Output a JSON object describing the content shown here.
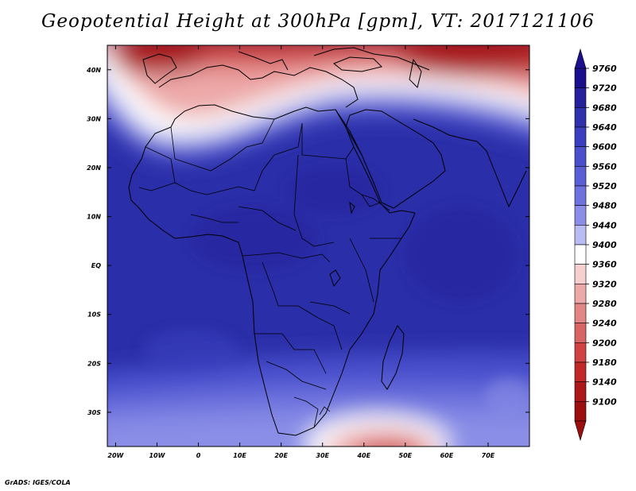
{
  "title": "Geopotential Height at 300hPa [gpm], VT: 2017121106",
  "footer": "GrADS: IGES/COLA",
  "axes": {
    "lat_labels": [
      "40N",
      "30N",
      "20N",
      "10N",
      "EQ",
      "10S",
      "20S",
      "30S"
    ],
    "lat_values": [
      40,
      30,
      20,
      10,
      0,
      -10,
      -20,
      -30
    ],
    "lon_labels": [
      "20W",
      "10W",
      "0",
      "10E",
      "20E",
      "30E",
      "40E",
      "50E",
      "60E",
      "70E"
    ],
    "lon_values": [
      -20,
      -10,
      0,
      10,
      20,
      30,
      40,
      50,
      60,
      70
    ],
    "lon_range": [
      -22,
      80
    ],
    "lat_range": [
      -37,
      45
    ]
  },
  "colorbar": {
    "labels": [
      "9760",
      "9720",
      "9680",
      "9640",
      "9600",
      "9560",
      "9520",
      "9480",
      "9440",
      "9400",
      "9360",
      "9320",
      "9280",
      "9240",
      "9200",
      "9180",
      "9140",
      "9100"
    ],
    "colors": [
      "#1a0f8c",
      "#25219d",
      "#2f31ad",
      "#3b3fbf",
      "#4a4fcc",
      "#5a5fd6",
      "#6d72de",
      "#8a8ee6",
      "#b8bcf2",
      "#ffffff",
      "#f6cfcf",
      "#eda8a8",
      "#e38686",
      "#d96464",
      "#cf4343",
      "#c22828",
      "#ad1717",
      "#9c0f0f"
    ]
  },
  "colors": {
    "deep_blue": "#2a2ea8",
    "mid_blue": "#4448c4",
    "light_blue": "#7f83e0",
    "white": "#ffffff",
    "pink": "#f2b4b4",
    "red": "#d94a4a",
    "dark_red": "#a81414"
  }
}
